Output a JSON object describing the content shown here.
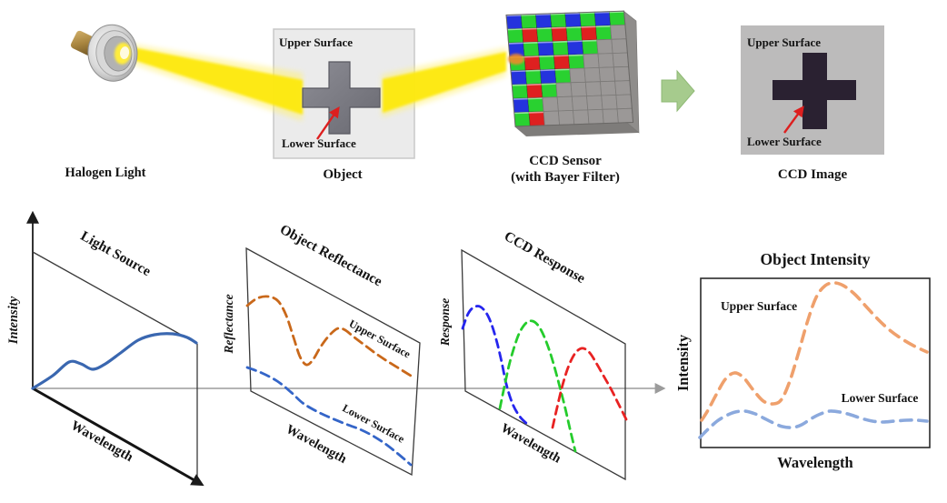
{
  "pipeline": {
    "halogen": {
      "label": "Halogen Light",
      "beam_color": "#fde910"
    },
    "object": {
      "label": "Object",
      "upper": "Upper Surface",
      "lower": "Lower Surface",
      "body_color": "#7b7b84",
      "panel_color": "#ebebeb",
      "arrow_color": "#dd1f1f"
    },
    "sensor": {
      "label1": "CCD Sensor",
      "label2": "(with Bayer Filter)",
      "bayer": {
        "rows": 8,
        "cols": 8,
        "counts": [
          8,
          7,
          6,
          5,
          4,
          3,
          2,
          2
        ],
        "colors": {
          "blue": "#2433dd",
          "green": "#29d130",
          "red": "#de2020",
          "gray": "#9b9897",
          "grayStroke": "#7c7a78",
          "side": "#8f8d8b",
          "bottom": "#7e7c7a"
        }
      }
    },
    "flow_arrow_color": "#a6cb8d",
    "ccd_image": {
      "label": "CCD Image",
      "upper": "Upper Surface",
      "lower": "Lower Surface",
      "panel_color": "#bcbbbb",
      "cross_color": "#2a2131",
      "text_color": "#e4e3e3",
      "arrow_color": "#dd1f1f"
    }
  },
  "plots": {
    "light_source": {
      "title": "Light Source",
      "xlabel": "Wavelength",
      "ylabel": "Intensity",
      "curve": {
        "name": "Light Source Spectrum",
        "color": "#3a67b0",
        "width": 3.2,
        "dash": "",
        "points": [
          [
            36,
            427
          ],
          [
            58,
            413
          ],
          [
            76,
            398
          ],
          [
            89,
            400
          ],
          [
            102,
            406
          ],
          [
            116,
            400
          ],
          [
            134,
            387
          ],
          [
            152,
            374
          ],
          [
            170,
            368
          ],
          [
            190,
            367
          ],
          [
            206,
            371
          ],
          [
            216,
            377
          ]
        ]
      }
    },
    "object_reflectance": {
      "title": "Object Reflectance",
      "xlabel": "Wavelength",
      "ylabel": "Reflectance",
      "upper": {
        "name": "Upper Surface",
        "color": "#c9681a",
        "width": 2.8,
        "dash": "10 6",
        "points": [
          [
            272,
            336
          ],
          [
            283,
            328
          ],
          [
            295,
            326
          ],
          [
            306,
            331
          ],
          [
            315,
            347
          ],
          [
            323,
            371
          ],
          [
            330,
            392
          ],
          [
            337,
            401
          ],
          [
            344,
            396
          ],
          [
            353,
            381
          ],
          [
            363,
            368
          ],
          [
            372,
            361
          ],
          [
            380,
            363
          ],
          [
            390,
            371
          ],
          [
            402,
            380
          ],
          [
            414,
            389
          ],
          [
            426,
            397
          ],
          [
            439,
            405
          ],
          [
            452,
            413
          ]
        ]
      },
      "lower": {
        "name": "Lower Surface",
        "color": "#3465c8",
        "width": 2.8,
        "dash": "10 6",
        "points": [
          [
            272,
            404
          ],
          [
            288,
            410
          ],
          [
            305,
            419
          ],
          [
            320,
            431
          ],
          [
            333,
            443
          ],
          [
            348,
            452
          ],
          [
            363,
            459
          ],
          [
            380,
            466
          ],
          [
            396,
            472
          ],
          [
            410,
            479
          ],
          [
            424,
            488
          ],
          [
            438,
            499
          ],
          [
            452,
            511
          ]
        ]
      }
    },
    "ccd_response": {
      "title": "CCD Response",
      "xlabel": "Wavelength",
      "ylabel": "Response",
      "blue": {
        "name": "Blue channel",
        "color": "#2525ee",
        "width": 2.8,
        "dash": "9 6",
        "points": [
          [
            509,
            361
          ],
          [
            515,
            345
          ],
          [
            521,
            338
          ],
          [
            528,
            337
          ],
          [
            535,
            344
          ],
          [
            541,
            357
          ],
          [
            547,
            377
          ],
          [
            552,
            398
          ],
          [
            557,
            422
          ],
          [
            564,
            444
          ],
          [
            572,
            458
          ],
          [
            581,
            467
          ]
        ]
      },
      "green": {
        "name": "Green channel",
        "color": "#25cc2c",
        "width": 2.8,
        "dash": "9 6",
        "points": [
          [
            550,
            449
          ],
          [
            555,
            425
          ],
          [
            560,
            402
          ],
          [
            566,
            381
          ],
          [
            572,
            365
          ],
          [
            579,
            355
          ],
          [
            586,
            353
          ],
          [
            593,
            359
          ],
          [
            600,
            373
          ],
          [
            607,
            393
          ],
          [
            614,
            418
          ],
          [
            621,
            445
          ],
          [
            627,
            471
          ],
          [
            633,
            496
          ]
        ]
      },
      "red": {
        "name": "Red channel",
        "color": "#e82222",
        "width": 2.8,
        "dash": "9 6",
        "points": [
          [
            608,
            470
          ],
          [
            613,
            448
          ],
          [
            618,
            427
          ],
          [
            624,
            407
          ],
          [
            630,
            393
          ],
          [
            636,
            385
          ],
          [
            642,
            383
          ],
          [
            649,
            388
          ],
          [
            656,
            399
          ],
          [
            664,
            413
          ],
          [
            673,
            429
          ],
          [
            681,
            445
          ],
          [
            689,
            461
          ]
        ]
      }
    },
    "object_intensity": {
      "title": "Object Intensity",
      "xlabel": "Wavelength",
      "ylabel": "Intensity",
      "upper": {
        "name": "Upper Surface",
        "color": "#efa06c",
        "width": 3.6,
        "dash": "12 8",
        "points": [
          [
            772,
            462
          ],
          [
            779,
            451
          ],
          [
            788,
            434
          ],
          [
            798,
            417
          ],
          [
            808,
            410
          ],
          [
            818,
            415
          ],
          [
            829,
            429
          ],
          [
            840,
            441
          ],
          [
            851,
            444
          ],
          [
            860,
            439
          ],
          [
            869,
            419
          ],
          [
            878,
            390
          ],
          [
            888,
            355
          ],
          [
            898,
            327
          ],
          [
            908,
            314
          ],
          [
            918,
            311
          ],
          [
            928,
            314
          ],
          [
            940,
            323
          ],
          [
            953,
            337
          ],
          [
            966,
            351
          ],
          [
            979,
            363
          ],
          [
            993,
            373
          ],
          [
            1007,
            381
          ],
          [
            1020,
            387
          ]
        ]
      },
      "lower": {
        "name": "Lower Surface",
        "color": "#8ba9dd",
        "width": 3.6,
        "dash": "12 8",
        "points": [
          [
            770,
            481
          ],
          [
            779,
            472
          ],
          [
            789,
            463
          ],
          [
            799,
            457
          ],
          [
            809,
            453
          ],
          [
            820,
            452
          ],
          [
            831,
            455
          ],
          [
            841,
            460
          ],
          [
            851,
            465
          ],
          [
            861,
            469
          ],
          [
            872,
            470
          ],
          [
            882,
            467
          ],
          [
            893,
            460
          ],
          [
            903,
            455
          ],
          [
            913,
            452
          ],
          [
            924,
            453
          ],
          [
            936,
            456
          ],
          [
            948,
            460
          ],
          [
            960,
            463
          ],
          [
            972,
            464
          ],
          [
            984,
            463
          ],
          [
            997,
            462
          ],
          [
            1009,
            462
          ],
          [
            1020,
            463
          ]
        ]
      }
    }
  }
}
